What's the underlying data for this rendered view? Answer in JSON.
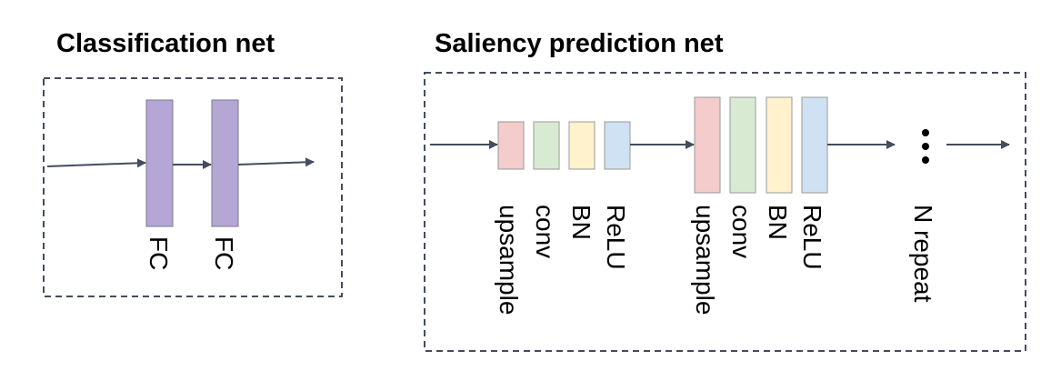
{
  "diagram": {
    "classification": {
      "title": "Classification net",
      "layers": [
        "FC",
        "FC"
      ]
    },
    "saliency": {
      "title": "Saliency prediction net",
      "block_labels": [
        "upsample",
        "conv",
        "BN",
        "ReLU"
      ],
      "repeat_label": "N repeat"
    },
    "colors": {
      "fc": "#b4a7d6",
      "upsample": "#f4cccc",
      "conv": "#d9ead3",
      "bn": "#fff2cc",
      "relu": "#cfe2f3",
      "border": "#434d5e",
      "arrow": "#434d5e"
    }
  }
}
